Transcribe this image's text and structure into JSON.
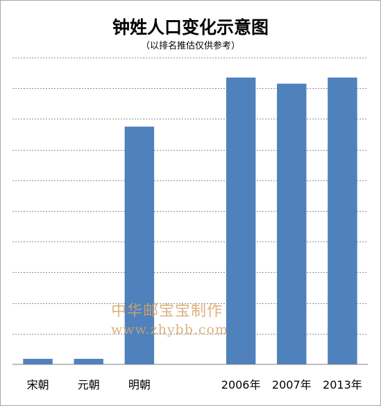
{
  "chart_data": {
    "type": "bar",
    "title": "钟姓人口变化示意图",
    "subtitle": "（以排名推估仅供参考）",
    "categories": [
      "宋朝",
      "元朝",
      "明朝",
      "",
      "2006年",
      "2007年",
      "2013年"
    ],
    "values": [
      0.18,
      0.18,
      7.75,
      null,
      9.35,
      9.15,
      9.35
    ],
    "ylim": [
      0,
      10
    ],
    "grid": true,
    "bar_color": "#4f81bd"
  },
  "watermark": {
    "line1": "中华邮宝宝制作",
    "line2": "www.zhybb.com"
  }
}
